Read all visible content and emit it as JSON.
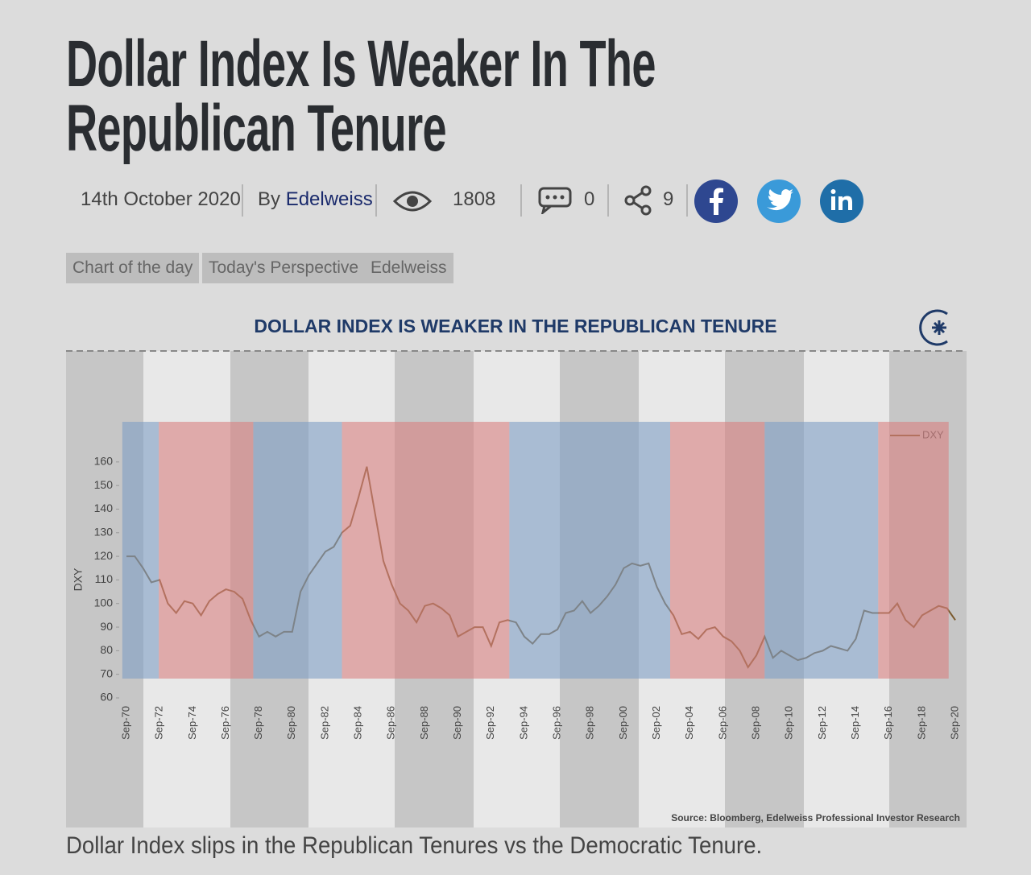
{
  "header": {
    "title": "Dollar Index Is Weaker In The Republican Tenure",
    "date": "14th October 2020",
    "by": "By",
    "author": "Edelweiss",
    "views": 1808,
    "comments": 0,
    "shares": 9
  },
  "tags": [
    "Chart of the day",
    "Today's Perspective",
    "Edelweiss"
  ],
  "chart_data": {
    "type": "line",
    "title": "DOLLAR INDEX IS WEAKER IN THE REPUBLICAN TENURE",
    "y_label": "DXY",
    "source": "Source: Bloomberg, Edelweiss Professional Investor Research",
    "categories": [
      "Sep-70",
      null,
      null,
      null,
      "Sep-72",
      null,
      null,
      null,
      "Sep-74",
      null,
      null,
      null,
      "Sep-76",
      null,
      null,
      null,
      "Sep-78",
      null,
      null,
      null,
      "Sep-80",
      null,
      null,
      null,
      "Sep-82",
      null,
      null,
      null,
      "Sep-84",
      null,
      null,
      null,
      "Sep-86",
      null,
      null,
      null,
      "Sep-88",
      null,
      null,
      null,
      "Sep-90",
      null,
      null,
      null,
      "Sep-92",
      null,
      null,
      null,
      "Sep-94",
      null,
      null,
      null,
      "Sep-96",
      null,
      null,
      null,
      "Sep-98",
      null,
      null,
      null,
      "Sep-00",
      null,
      null,
      null,
      "Sep-02",
      null,
      null,
      null,
      "Sep-04",
      null,
      null,
      null,
      "Sep-06",
      null,
      null,
      null,
      "Sep-08",
      null,
      null,
      null,
      "Sep-10",
      null,
      null,
      null,
      "Sep-12",
      null,
      null,
      null,
      "Sep-14",
      null,
      null,
      null,
      "Sep-16",
      null,
      null,
      null,
      "Sep-18",
      null,
      null,
      null,
      "Sep-20"
    ],
    "series": [
      {
        "name": "DXY",
        "color": "#7b5a2e",
        "values": [
          120,
          120,
          115,
          109,
          110,
          100,
          96,
          101,
          100,
          95,
          101,
          104,
          106,
          105,
          102,
          93,
          86,
          88,
          86,
          88,
          88,
          105,
          112,
          117,
          122,
          124,
          130,
          133,
          145,
          158,
          138,
          118,
          108,
          100,
          97,
          92,
          99,
          100,
          98,
          95,
          86,
          88,
          90,
          90,
          82,
          92,
          93,
          92,
          86,
          83,
          87,
          87,
          89,
          96,
          97,
          101,
          96,
          99,
          103,
          108,
          115,
          117,
          116,
          117,
          107,
          100,
          95,
          87,
          88,
          85,
          89,
          90,
          86,
          84,
          80,
          73,
          78,
          86,
          77,
          80,
          78,
          76,
          77,
          79,
          80,
          82,
          81,
          80,
          85,
          97,
          96,
          96,
          96,
          100,
          93,
          90,
          95,
          97,
          99,
          98,
          93
        ]
      }
    ],
    "regions": [
      {
        "from": -0.5,
        "to": 3.9,
        "color": "#7f9fc4"
      },
      {
        "from": 3.9,
        "to": 15.3,
        "color": "#d98080"
      },
      {
        "from": 15.3,
        "to": 26.0,
        "color": "#7f9fc4"
      },
      {
        "from": 26.0,
        "to": 46.2,
        "color": "#d98080"
      },
      {
        "from": 46.2,
        "to": 65.6,
        "color": "#7f9fc4"
      },
      {
        "from": 65.6,
        "to": 77.0,
        "color": "#d98080"
      },
      {
        "from": 77.0,
        "to": 90.7,
        "color": "#7f9fc4"
      },
      {
        "from": 90.7,
        "to": 99.2,
        "color": "#d98080"
      }
    ],
    "ylim": [
      60,
      177
    ],
    "yticks": [
      60,
      70,
      80,
      90,
      100,
      110,
      120,
      130,
      140,
      150,
      160
    ],
    "legend": "top-right"
  },
  "caption": "Dollar Index slips in the Republican Tenures vs the Democratic Tenure."
}
